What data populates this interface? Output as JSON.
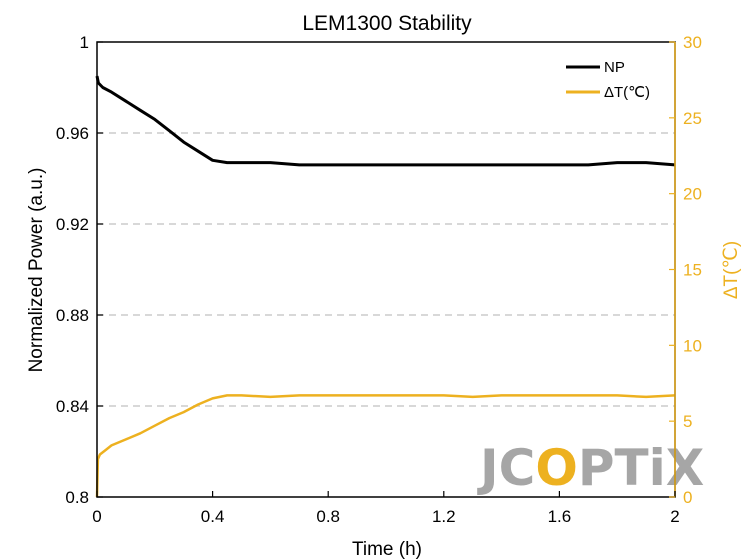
{
  "chart_data": {
    "type": "line",
    "title": "LEM1300 Stability",
    "xlabel": "Time (h)",
    "ylabel": "Normalized Power (a.u.)",
    "y2label": "ΔT(℃)",
    "xlim": [
      0,
      2
    ],
    "ylim": [
      0.8,
      1.0
    ],
    "y2lim": [
      0,
      30
    ],
    "x_ticks": [
      0,
      0.4,
      0.8,
      1.2,
      1.6,
      2
    ],
    "x_tick_labels": [
      "0",
      "0.4",
      "0.8",
      "1.2",
      "1.6",
      "2"
    ],
    "y_ticks": [
      0.8,
      0.84,
      0.88,
      0.92,
      0.96,
      1.0
    ],
    "y_tick_labels": [
      "0.8",
      "0.84",
      "0.88",
      "0.92",
      "0.96",
      "1"
    ],
    "y2_ticks": [
      0,
      5,
      10,
      15,
      20,
      25,
      30
    ],
    "y2_tick_labels": [
      "0",
      "5",
      "10",
      "15",
      "20",
      "25",
      "30"
    ],
    "grid": "horizontal dashed",
    "legend_position": "top-right",
    "colors": {
      "NP": "#000000",
      "dT": "#edb120",
      "grid": "#cccccc",
      "watermark": "#a6a6a6",
      "watermark_accent": "#edb120"
    },
    "series": [
      {
        "name": "NP",
        "axis": "left",
        "x": [
          0,
          0.005,
          0.02,
          0.05,
          0.1,
          0.15,
          0.2,
          0.25,
          0.3,
          0.35,
          0.4,
          0.45,
          0.5,
          0.6,
          0.7,
          0.8,
          0.9,
          1.0,
          1.1,
          1.2,
          1.3,
          1.4,
          1.5,
          1.6,
          1.7,
          1.8,
          1.9,
          2.0
        ],
        "y": [
          0.985,
          0.982,
          0.98,
          0.978,
          0.974,
          0.97,
          0.966,
          0.961,
          0.956,
          0.952,
          0.948,
          0.947,
          0.947,
          0.947,
          0.946,
          0.946,
          0.946,
          0.946,
          0.946,
          0.946,
          0.946,
          0.946,
          0.946,
          0.946,
          0.946,
          0.947,
          0.947,
          0.946
        ]
      },
      {
        "name": "ΔT(℃)",
        "axis": "right",
        "x": [
          0,
          0.003,
          0.01,
          0.03,
          0.05,
          0.1,
          0.15,
          0.2,
          0.25,
          0.3,
          0.35,
          0.4,
          0.45,
          0.5,
          0.6,
          0.7,
          0.8,
          0.9,
          1.0,
          1.1,
          1.2,
          1.3,
          1.4,
          1.5,
          1.6,
          1.7,
          1.8,
          1.9,
          2.0
        ],
        "y": [
          0.0,
          2.5,
          2.8,
          3.1,
          3.4,
          3.8,
          4.2,
          4.7,
          5.2,
          5.6,
          6.1,
          6.5,
          6.7,
          6.7,
          6.6,
          6.7,
          6.7,
          6.7,
          6.7,
          6.7,
          6.7,
          6.6,
          6.7,
          6.7,
          6.7,
          6.7,
          6.7,
          6.6,
          6.7
        ]
      }
    ],
    "legend": [
      "NP",
      "ΔT(℃)"
    ]
  },
  "watermark": {
    "prefix": "JC",
    "middle": "O",
    "suffix": "PTiX"
  }
}
